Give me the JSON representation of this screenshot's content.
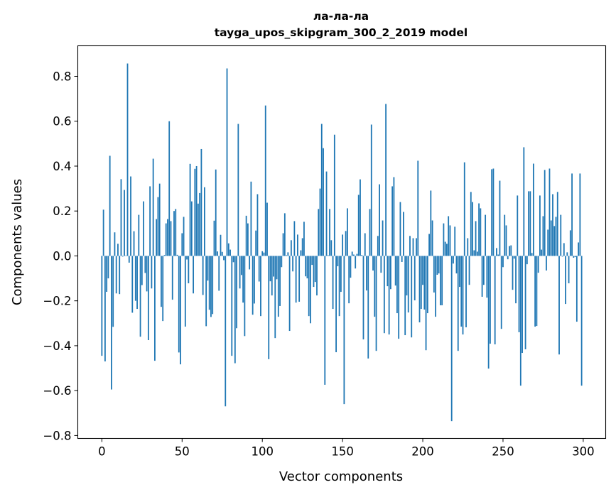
{
  "chart_data": {
    "type": "bar",
    "title": "ла-ла-ла",
    "subtitle": "tayga_upos_skipgram_300_2_2019 model",
    "xlabel": "Vector components",
    "ylabel": "Components values",
    "xlim": [
      -15,
      314
    ],
    "ylim": [
      -0.813,
      0.936
    ],
    "xticks": [
      0,
      50,
      100,
      150,
      200,
      250,
      300
    ],
    "xtick_labels": [
      "0",
      "50",
      "100",
      "150",
      "200",
      "250",
      "300"
    ],
    "yticks": [
      -0.8,
      -0.6,
      -0.4,
      -0.2,
      0.0,
      0.2,
      0.4,
      0.6,
      0.8
    ],
    "ytick_labels": [
      "−0.8",
      "−0.6",
      "−0.4",
      "−0.2",
      "0.0",
      "0.2",
      "0.4",
      "0.6",
      "0.8"
    ],
    "grid": false,
    "color": "#1f77b4",
    "values": [
      -0.445,
      0.206,
      -0.47,
      -0.16,
      -0.1,
      0.446,
      -0.595,
      -0.316,
      0.105,
      -0.167,
      0.054,
      -0.17,
      0.342,
      -0.003,
      0.294,
      0.002,
      0.857,
      -0.03,
      0.354,
      -0.253,
      0.11,
      -0.2,
      -0.236,
      0.183,
      -0.36,
      -0.13,
      0.243,
      -0.076,
      -0.158,
      -0.375,
      0.31,
      -0.145,
      0.433,
      -0.467,
      0.164,
      0.262,
      0.322,
      -0.227,
      -0.29,
      0.004,
      0.145,
      0.164,
      0.6,
      0.155,
      -0.195,
      0.2,
      0.209,
      0.005,
      -0.43,
      -0.483,
      0.101,
      0.174,
      -0.315,
      -0.016,
      -0.122,
      0.41,
      0.243,
      -0.167,
      0.388,
      0.4,
      0.233,
      0.28,
      0.476,
      -0.174,
      0.306,
      -0.313,
      -0.11,
      -0.24,
      -0.272,
      -0.259,
      0.157,
      0.385,
      0.02,
      -0.155,
      0.094,
      0.018,
      -0.019,
      -0.67,
      0.835,
      0.056,
      0.028,
      -0.445,
      -0.028,
      -0.478,
      -0.322,
      0.588,
      -0.145,
      -0.085,
      -0.208,
      -0.357,
      0.179,
      0.145,
      -0.06,
      0.331,
      -0.262,
      -0.212,
      0.113,
      0.275,
      -0.114,
      -0.268,
      0.021,
      0.015,
      0.67,
      0.237,
      -0.46,
      -0.113,
      -0.176,
      -0.092,
      -0.366,
      -0.104,
      -0.271,
      -0.223,
      -0.05,
      0.101,
      0.19,
      0.003,
      0.016,
      -0.334,
      0.07,
      -0.069,
      0.155,
      -0.208,
      0.095,
      -0.204,
      0.025,
      0.079,
      0.152,
      -0.091,
      -0.1,
      -0.268,
      -0.3,
      -0.04,
      -0.138,
      -0.116,
      -0.176,
      0.209,
      0.3,
      0.588,
      0.48,
      -0.574,
      0.376,
      0.003,
      0.209,
      0.07,
      -0.236,
      0.54,
      -0.429,
      -0.046,
      -0.268,
      -0.16,
      0.095,
      -0.66,
      0.111,
      0.212,
      -0.211,
      -0.097,
      0.019,
      0.006,
      -0.056,
      0.009,
      0.272,
      0.341,
      0.004,
      -0.372,
      0.101,
      -0.154,
      -0.457,
      0.209,
      0.585,
      -0.065,
      -0.271,
      -0.423,
      0.089,
      0.319,
      -0.075,
      0.158,
      -0.344,
      0.677,
      -0.135,
      -0.35,
      -0.148,
      0.31,
      0.351,
      -0.132,
      -0.255,
      -0.369,
      0.24,
      -0.027,
      0.196,
      -0.353,
      -0.176,
      -0.252,
      0.089,
      -0.363,
      0.079,
      -0.198,
      0.079,
      0.424,
      -0.296,
      -0.236,
      -0.129,
      -0.239,
      -0.42,
      -0.255,
      0.098,
      0.291,
      0.158,
      -0.163,
      -0.271,
      -0.084,
      -0.078,
      -0.22,
      -0.22,
      0.145,
      0.063,
      0.054,
      0.177,
      0.136,
      -0.736,
      -0.034,
      0.13,
      -0.078,
      -0.423,
      -0.138,
      -0.315,
      -0.35,
      0.417,
      -0.318,
      0.079,
      -0.129,
      0.285,
      0.24,
      0.025,
      0.155,
      0.019,
      0.234,
      0.212,
      -0.182,
      -0.129,
      0.183,
      -0.186,
      -0.502,
      -0.391,
      0.386,
      0.389,
      -0.394,
      0.035,
      0.006,
      0.335,
      -0.325,
      -0.05,
      0.183,
      0.136,
      -0.015,
      0.044,
      0.047,
      -0.151,
      -0.012,
      -0.211,
      0.269,
      -0.34,
      -0.578,
      -0.432,
      0.484,
      -0.416,
      -0.037,
      0.288,
      0.288,
      0.013,
      0.411,
      -0.315,
      -0.312,
      -0.075,
      0.269,
      0.028,
      0.177,
      0.383,
      -0.065,
      0.117,
      0.389,
      0.158,
      0.275,
      0.133,
      0.174,
      0.285,
      -0.439,
      0.183,
      -0.003,
      0.057,
      -0.214,
      0.016,
      -0.122,
      0.114,
      0.367,
      -0.008,
      -0.005,
      -0.293,
      0.06,
      0.367,
      -0.578
    ]
  }
}
